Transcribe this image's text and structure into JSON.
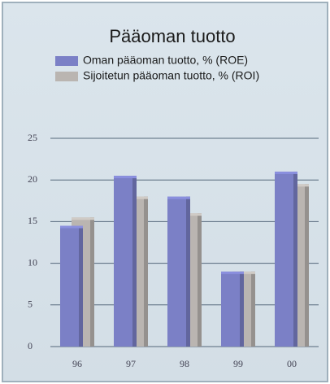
{
  "chart_data": {
    "type": "bar",
    "title": "Pääoman tuotto",
    "categories": [
      "96",
      "97",
      "98",
      "99",
      "00"
    ],
    "series": [
      {
        "name": "Oman pääoman tuotto, % (ROE)",
        "color": "#7b80c6",
        "values": [
          14.5,
          20.5,
          18,
          9,
          21
        ]
      },
      {
        "name": "Sijoitetun pääoman tuotto, % (ROI)",
        "color": "#bab5b1",
        "values": [
          15.5,
          18,
          16,
          9,
          19.5
        ]
      }
    ],
    "ylim": [
      0,
      25
    ],
    "yticks": [
      0,
      5,
      10,
      15,
      20,
      25
    ],
    "grid": true,
    "legend": "top-left"
  }
}
